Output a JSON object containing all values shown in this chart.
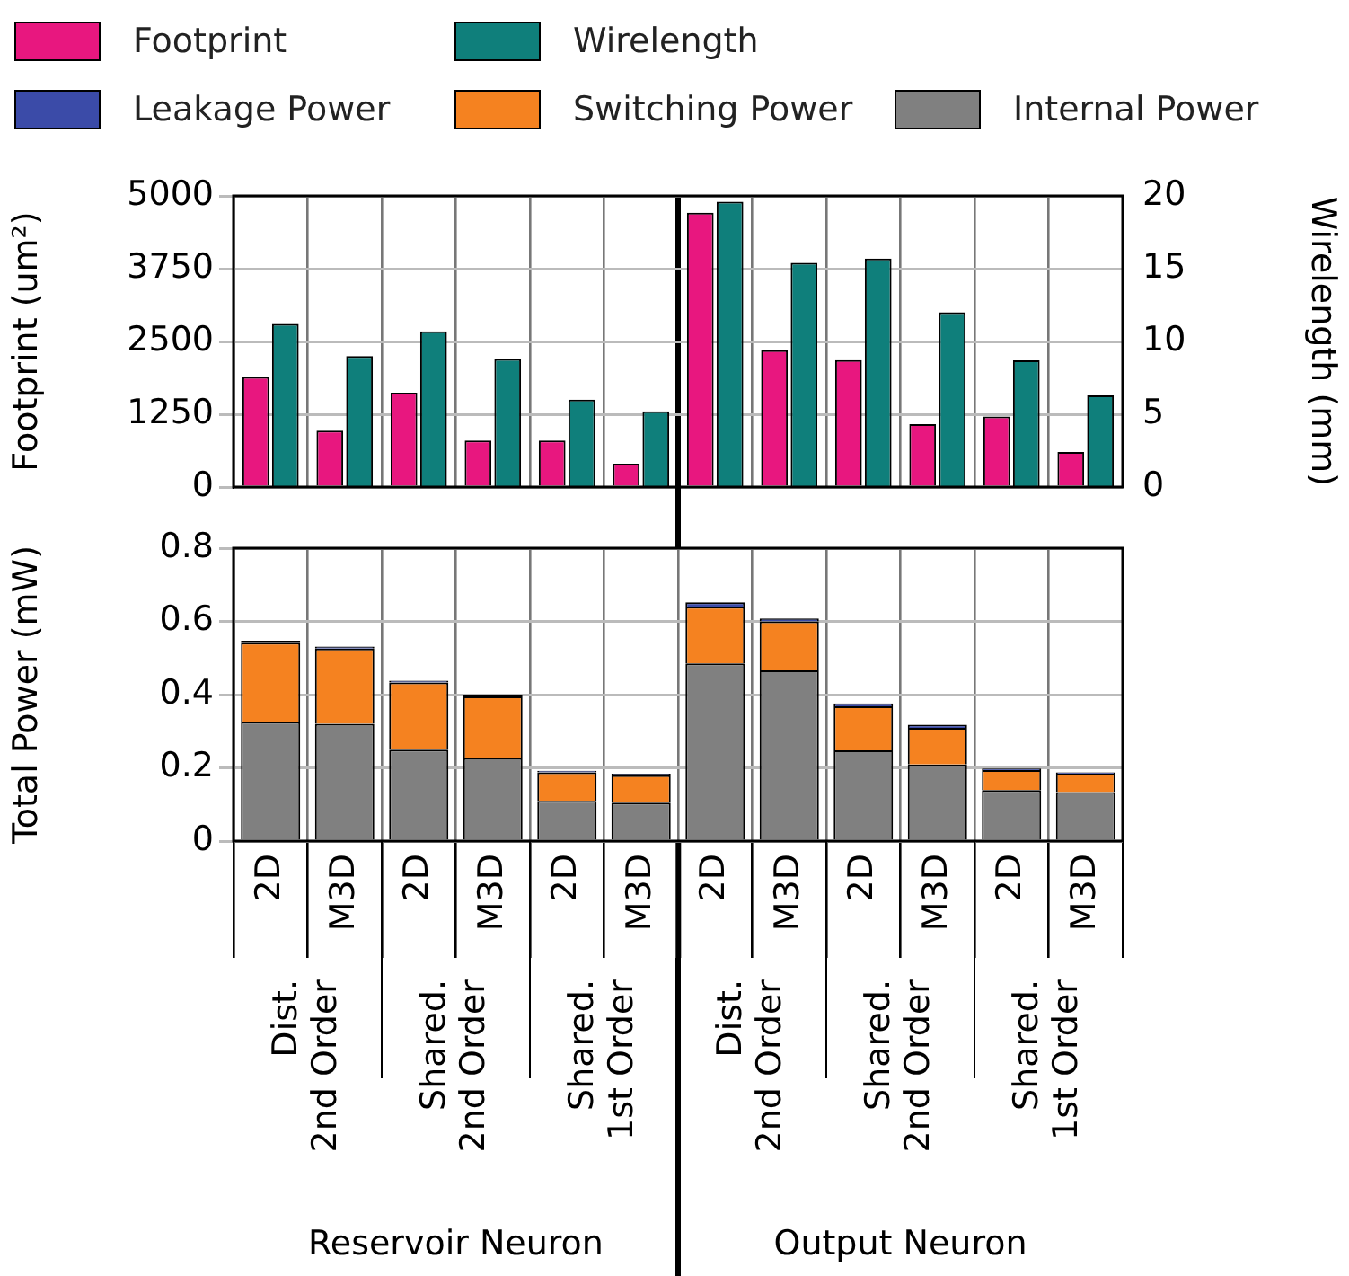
{
  "chart_data": [
    {
      "type": "bar",
      "categories": [
        null,
        null,
        null,
        null,
        null,
        null,
        null,
        null,
        null,
        null,
        null,
        null
      ],
      "series": [
        {
          "name": "Footprint",
          "color": "#e8177f",
          "values": [
            1890,
            970,
            1620,
            800,
            800,
            400,
            4710,
            2350,
            2180,
            1080,
            1210,
            600
          ]
        },
        {
          "name": "Wirelength",
          "color": "#0f7f7b",
          "axis": "y2",
          "values": [
            11.2,
            9.0,
            10.7,
            8.8,
            6.0,
            5.2,
            19.6,
            15.4,
            15.7,
            12.0,
            8.7,
            6.3
          ]
        }
      ],
      "ylabel": "Footprint (um²)",
      "y2label": "Wirelength (mm)",
      "ylim": [
        0,
        5000
      ],
      "yticks": [
        0,
        1250,
        2500,
        3750,
        5000
      ],
      "y2lim": [
        0,
        20
      ],
      "y2ticks": [
        0,
        5,
        10,
        15,
        20
      ],
      "grid": true,
      "legend": "top",
      "tick_labels": "y"
    },
    {
      "type": "bar",
      "stacked": true,
      "categories": [
        "2D",
        "M3D",
        "2D",
        "M3D",
        "2D",
        "M3D",
        "2D",
        "M3D",
        "2D",
        "M3D",
        "2D",
        "M3D"
      ],
      "series": [
        {
          "name": "Internal Power",
          "color": "#808080",
          "values": [
            0.326,
            0.32,
            0.25,
            0.227,
            0.11,
            0.105,
            0.485,
            0.466,
            0.248,
            0.209,
            0.139,
            0.134
          ]
        },
        {
          "name": "Switching Power",
          "color": "#f58220",
          "values": [
            0.216,
            0.206,
            0.183,
            0.168,
            0.078,
            0.075,
            0.155,
            0.134,
            0.12,
            0.1,
            0.055,
            0.05
          ]
        },
        {
          "name": "Leakage Power",
          "color": "#3b4ba8",
          "values": [
            0.005,
            0.005,
            0.005,
            0.005,
            0.004,
            0.004,
            0.012,
            0.008,
            0.008,
            0.009,
            0.004,
            0.004
          ]
        }
      ],
      "ylabel": "Total Power (mW)",
      "ylim": [
        0,
        0.8
      ],
      "yticks": [
        0,
        0.2,
        0.4,
        0.6,
        0.8
      ],
      "grid": true,
      "legend": "top",
      "annotations": [
        "Dist. 2nd Order",
        "Shared. 2nd Order",
        "Shared. 1st Order",
        "Dist. 2nd Order",
        "Shared. 2nd Order",
        "Shared. 1st Order",
        "Reservoir Neuron",
        "Output Neuron"
      ]
    }
  ]
}
